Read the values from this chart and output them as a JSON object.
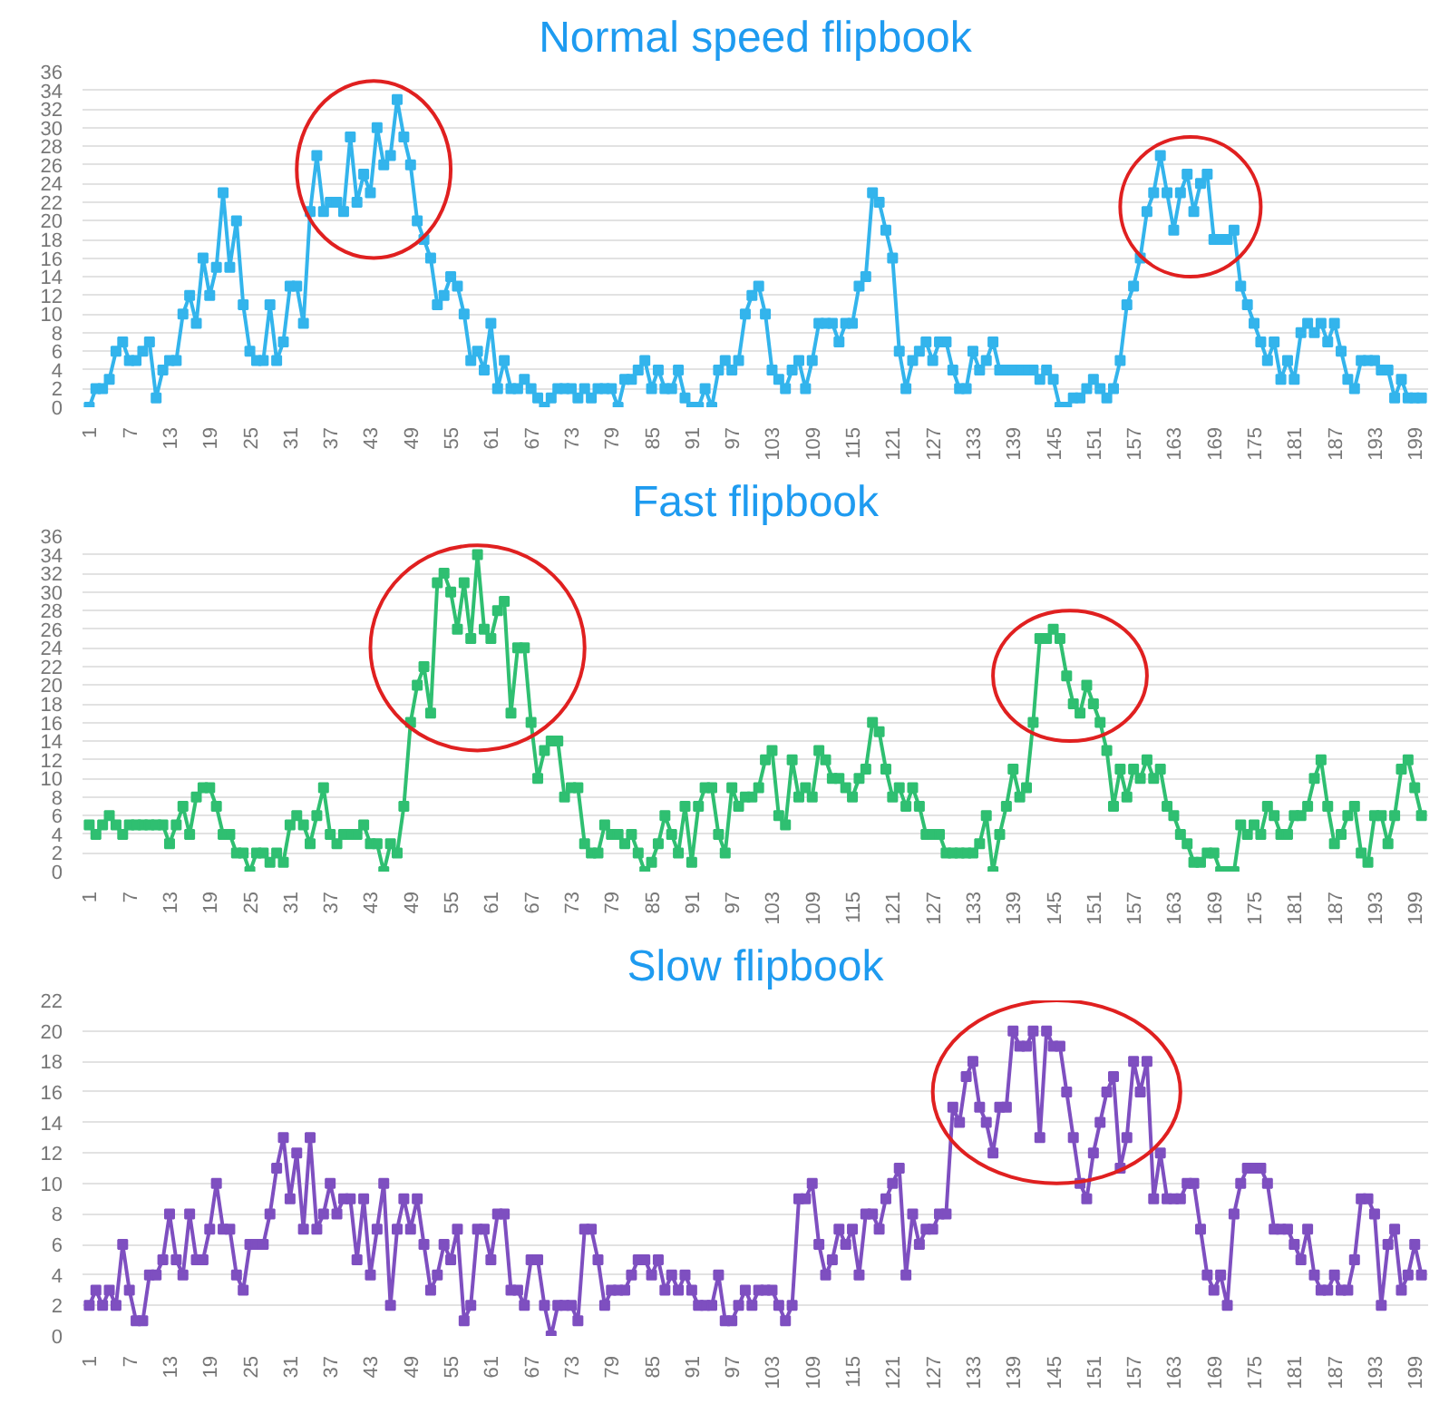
{
  "chart_data": [
    {
      "type": "line",
      "title": "Normal speed flipbook",
      "marker": "square",
      "grid": "y",
      "x": [
        1,
        2,
        3,
        4,
        5,
        6,
        7,
        8,
        9,
        10,
        11,
        12,
        13,
        14,
        15,
        16,
        17,
        18,
        19,
        20,
        21,
        22,
        23,
        24,
        25,
        26,
        27,
        28,
        29,
        30,
        31,
        32,
        33,
        34,
        35,
        36,
        37,
        38,
        39,
        40,
        41,
        42,
        43,
        44,
        45,
        46,
        47,
        48,
        49,
        50,
        51,
        52,
        53,
        54,
        55,
        56,
        57,
        58,
        59,
        60,
        61,
        62,
        63,
        64,
        65,
        66,
        67,
        68,
        69,
        70,
        71,
        72,
        73,
        74,
        75,
        76,
        77,
        78,
        79,
        80,
        81,
        82,
        83,
        84,
        85,
        86,
        87,
        88,
        89,
        90,
        91,
        92,
        93,
        94,
        95,
        96,
        97,
        98,
        99,
        100,
        101,
        102,
        103,
        104,
        105,
        106,
        107,
        108,
        109,
        110,
        111,
        112,
        113,
        114,
        115,
        116,
        117,
        118,
        119,
        120,
        121,
        122,
        123,
        124,
        125,
        126,
        127,
        128,
        129,
        130,
        131,
        132,
        133,
        134,
        135,
        136,
        137,
        138,
        139,
        140,
        141,
        142,
        143,
        144,
        145,
        146,
        147,
        148,
        149,
        150,
        151,
        152,
        153,
        154,
        155,
        156,
        157,
        158,
        159,
        160,
        161,
        162,
        163,
        164,
        165,
        166,
        167,
        168,
        169,
        170,
        171,
        172,
        173,
        174,
        175,
        176,
        177,
        178,
        179,
        180,
        181,
        182,
        183,
        184,
        185,
        186,
        187,
        188,
        189,
        190,
        191,
        192,
        193,
        194,
        195,
        196,
        197,
        198,
        199,
        200
      ],
      "series": [
        {
          "color": "#33b4ec",
          "values": [
            0,
            2,
            2,
            3,
            6,
            7,
            5,
            5,
            6,
            7,
            1,
            4,
            5,
            5,
            10,
            12,
            9,
            16,
            12,
            15,
            23,
            15,
            20,
            11,
            6,
            5,
            5,
            11,
            5,
            7,
            13,
            13,
            9,
            21,
            27,
            21,
            22,
            22,
            21,
            29,
            22,
            25,
            23,
            30,
            26,
            27,
            33,
            29,
            26,
            20,
            18,
            16,
            11,
            12,
            14,
            13,
            10,
            5,
            6,
            4,
            9,
            2,
            5,
            2,
            2,
            3,
            2,
            1,
            0,
            1,
            2,
            2,
            2,
            1,
            2,
            1,
            2,
            2,
            2,
            0,
            3,
            3,
            4,
            5,
            2,
            4,
            2,
            2,
            4,
            1,
            0,
            0,
            2,
            0,
            4,
            5,
            4,
            5,
            10,
            12,
            13,
            10,
            4,
            3,
            2,
            4,
            5,
            2,
            5,
            9,
            9,
            9,
            7,
            9,
            9,
            13,
            14,
            23,
            22,
            19,
            16,
            6,
            2,
            5,
            6,
            7,
            5,
            7,
            7,
            4,
            2,
            2,
            6,
            4,
            5,
            7,
            4,
            4,
            4,
            4,
            4,
            4,
            3,
            4,
            3,
            0,
            0,
            1,
            1,
            2,
            3,
            2,
            1,
            2,
            5,
            11,
            13,
            16,
            21,
            23,
            27,
            23,
            19,
            23,
            25,
            21,
            24,
            25,
            18,
            18,
            18,
            19,
            13,
            11,
            9,
            7,
            5,
            7,
            3,
            5,
            3,
            8,
            9,
            8,
            9,
            7,
            9,
            6,
            3,
            2,
            5,
            5,
            5,
            4,
            4,
            1,
            3,
            1,
            1,
            1
          ]
        }
      ],
      "xlim": [
        0,
        201
      ],
      "xticks": [
        1,
        7,
        13,
        19,
        25,
        31,
        37,
        43,
        49,
        55,
        61,
        67,
        73,
        79,
        85,
        91,
        97,
        103,
        109,
        115,
        121,
        127,
        133,
        139,
        145,
        151,
        157,
        163,
        169,
        175,
        181,
        187,
        193,
        199
      ],
      "ylim": [
        0,
        36
      ],
      "yticks": [
        0,
        2,
        4,
        6,
        8,
        10,
        12,
        14,
        16,
        18,
        20,
        22,
        24,
        26,
        28,
        30,
        32,
        34,
        36
      ]
    },
    {
      "type": "line",
      "title": "Fast flipbook",
      "marker": "square",
      "grid": "y",
      "x": [
        1,
        2,
        3,
        4,
        5,
        6,
        7,
        8,
        9,
        10,
        11,
        12,
        13,
        14,
        15,
        16,
        17,
        18,
        19,
        20,
        21,
        22,
        23,
        24,
        25,
        26,
        27,
        28,
        29,
        30,
        31,
        32,
        33,
        34,
        35,
        36,
        37,
        38,
        39,
        40,
        41,
        42,
        43,
        44,
        45,
        46,
        47,
        48,
        49,
        50,
        51,
        52,
        53,
        54,
        55,
        56,
        57,
        58,
        59,
        60,
        61,
        62,
        63,
        64,
        65,
        66,
        67,
        68,
        69,
        70,
        71,
        72,
        73,
        74,
        75,
        76,
        77,
        78,
        79,
        80,
        81,
        82,
        83,
        84,
        85,
        86,
        87,
        88,
        89,
        90,
        91,
        92,
        93,
        94,
        95,
        96,
        97,
        98,
        99,
        100,
        101,
        102,
        103,
        104,
        105,
        106,
        107,
        108,
        109,
        110,
        111,
        112,
        113,
        114,
        115,
        116,
        117,
        118,
        119,
        120,
        121,
        122,
        123,
        124,
        125,
        126,
        127,
        128,
        129,
        130,
        131,
        132,
        133,
        134,
        135,
        136,
        137,
        138,
        139,
        140,
        141,
        142,
        143,
        144,
        145,
        146,
        147,
        148,
        149,
        150,
        151,
        152,
        153,
        154,
        155,
        156,
        157,
        158,
        159,
        160,
        161,
        162,
        163,
        164,
        165,
        166,
        167,
        168,
        169,
        170,
        171,
        172,
        173,
        174,
        175,
        176,
        177,
        178,
        179,
        180,
        181,
        182,
        183,
        184,
        185,
        186,
        187,
        188,
        189,
        190,
        191,
        192,
        193,
        194,
        195,
        196,
        197,
        198,
        199,
        200
      ],
      "series": [
        {
          "color": "#2fbf71",
          "values": [
            5,
            4,
            5,
            6,
            5,
            4,
            5,
            5,
            5,
            5,
            5,
            5,
            3,
            5,
            7,
            4,
            8,
            9,
            9,
            7,
            4,
            4,
            2,
            2,
            0,
            2,
            2,
            1,
            2,
            1,
            5,
            6,
            5,
            3,
            6,
            9,
            4,
            3,
            4,
            4,
            4,
            5,
            3,
            3,
            0,
            3,
            2,
            7,
            16,
            20,
            22,
            17,
            31,
            32,
            30,
            26,
            31,
            25,
            34,
            26,
            25,
            28,
            29,
            17,
            24,
            24,
            16,
            10,
            13,
            14,
            14,
            8,
            9,
            9,
            3,
            2,
            2,
            5,
            4,
            4,
            3,
            4,
            2,
            0,
            1,
            3,
            6,
            4,
            2,
            7,
            1,
            7,
            9,
            9,
            4,
            2,
            9,
            7,
            8,
            8,
            9,
            12,
            13,
            6,
            5,
            12,
            8,
            9,
            8,
            13,
            12,
            10,
            10,
            9,
            8,
            10,
            11,
            16,
            15,
            11,
            8,
            9,
            7,
            9,
            7,
            4,
            4,
            4,
            2,
            2,
            2,
            2,
            2,
            3,
            6,
            0,
            4,
            7,
            11,
            8,
            9,
            16,
            25,
            25,
            26,
            25,
            21,
            18,
            17,
            20,
            18,
            16,
            13,
            7,
            11,
            8,
            11,
            10,
            12,
            10,
            11,
            7,
            6,
            4,
            3,
            1,
            1,
            2,
            2,
            0,
            0,
            0,
            5,
            4,
            5,
            4,
            7,
            6,
            4,
            4,
            6,
            6,
            7,
            10,
            12,
            7,
            3,
            4,
            6,
            7,
            2,
            1,
            6,
            6,
            3,
            6,
            11,
            12,
            9,
            6
          ]
        }
      ],
      "xlim": [
        0,
        201
      ],
      "xticks": [
        1,
        7,
        13,
        19,
        25,
        31,
        37,
        43,
        49,
        55,
        61,
        67,
        73,
        79,
        85,
        91,
        97,
        103,
        109,
        115,
        121,
        127,
        133,
        139,
        145,
        151,
        157,
        163,
        169,
        175,
        181,
        187,
        193,
        199
      ],
      "ylim": [
        0,
        36
      ],
      "yticks": [
        0,
        2,
        4,
        6,
        8,
        10,
        12,
        14,
        16,
        18,
        20,
        22,
        24,
        26,
        28,
        30,
        32,
        34,
        36
      ]
    },
    {
      "type": "line",
      "title": "Slow flipbook",
      "marker": "square",
      "grid": "y",
      "x": [
        1,
        2,
        3,
        4,
        5,
        6,
        7,
        8,
        9,
        10,
        11,
        12,
        13,
        14,
        15,
        16,
        17,
        18,
        19,
        20,
        21,
        22,
        23,
        24,
        25,
        26,
        27,
        28,
        29,
        30,
        31,
        32,
        33,
        34,
        35,
        36,
        37,
        38,
        39,
        40,
        41,
        42,
        43,
        44,
        45,
        46,
        47,
        48,
        49,
        50,
        51,
        52,
        53,
        54,
        55,
        56,
        57,
        58,
        59,
        60,
        61,
        62,
        63,
        64,
        65,
        66,
        67,
        68,
        69,
        70,
        71,
        72,
        73,
        74,
        75,
        76,
        77,
        78,
        79,
        80,
        81,
        82,
        83,
        84,
        85,
        86,
        87,
        88,
        89,
        90,
        91,
        92,
        93,
        94,
        95,
        96,
        97,
        98,
        99,
        100,
        101,
        102,
        103,
        104,
        105,
        106,
        107,
        108,
        109,
        110,
        111,
        112,
        113,
        114,
        115,
        116,
        117,
        118,
        119,
        120,
        121,
        122,
        123,
        124,
        125,
        126,
        127,
        128,
        129,
        130,
        131,
        132,
        133,
        134,
        135,
        136,
        137,
        138,
        139,
        140,
        141,
        142,
        143,
        144,
        145,
        146,
        147,
        148,
        149,
        150,
        151,
        152,
        153,
        154,
        155,
        156,
        157,
        158,
        159,
        160,
        161,
        162,
        163,
        164,
        165,
        166,
        167,
        168,
        169,
        170,
        171,
        172,
        173,
        174,
        175,
        176,
        177,
        178,
        179,
        180,
        181,
        182,
        183,
        184,
        185,
        186,
        187,
        188,
        189,
        190,
        191,
        192,
        193,
        194,
        195,
        196,
        197,
        198,
        199,
        200
      ],
      "series": [
        {
          "color": "#7e4fc0",
          "values": [
            2,
            3,
            2,
            3,
            2,
            6,
            3,
            1,
            1,
            4,
            4,
            5,
            8,
            5,
            4,
            8,
            5,
            5,
            7,
            10,
            7,
            7,
            4,
            3,
            6,
            6,
            6,
            8,
            11,
            13,
            9,
            12,
            7,
            13,
            7,
            8,
            10,
            8,
            9,
            9,
            5,
            9,
            4,
            7,
            10,
            2,
            7,
            9,
            7,
            9,
            6,
            3,
            4,
            6,
            5,
            7,
            1,
            2,
            7,
            7,
            5,
            8,
            8,
            3,
            3,
            2,
            5,
            5,
            2,
            0,
            2,
            2,
            2,
            1,
            7,
            7,
            5,
            2,
            3,
            3,
            3,
            4,
            5,
            5,
            4,
            5,
            3,
            4,
            3,
            4,
            3,
            2,
            2,
            2,
            4,
            1,
            1,
            2,
            3,
            2,
            3,
            3,
            3,
            2,
            1,
            2,
            9,
            9,
            10,
            6,
            4,
            5,
            7,
            6,
            7,
            4,
            8,
            8,
            7,
            9,
            10,
            11,
            4,
            8,
            6,
            7,
            7,
            8,
            8,
            15,
            14,
            17,
            18,
            15,
            14,
            12,
            15,
            15,
            20,
            19,
            19,
            20,
            13,
            20,
            19,
            19,
            16,
            13,
            10,
            9,
            12,
            14,
            16,
            17,
            11,
            13,
            18,
            16,
            18,
            9,
            12,
            9,
            9,
            9,
            10,
            10,
            7,
            4,
            3,
            4,
            2,
            8,
            10,
            11,
            11,
            11,
            10,
            7,
            7,
            7,
            6,
            5,
            7,
            4,
            3,
            3,
            4,
            3,
            3,
            5,
            9,
            9,
            8,
            2,
            6,
            7,
            3,
            4,
            6,
            4
          ]
        }
      ],
      "xlim": [
        0,
        201
      ],
      "xticks": [
        1,
        7,
        13,
        19,
        25,
        31,
        37,
        43,
        49,
        55,
        61,
        67,
        73,
        79,
        85,
        91,
        97,
        103,
        109,
        115,
        121,
        127,
        133,
        139,
        145,
        151,
        157,
        163,
        169,
        175,
        181,
        187,
        193,
        199
      ],
      "ylim": [
        0,
        22
      ],
      "yticks": [
        0,
        2,
        4,
        6,
        8,
        10,
        12,
        14,
        16,
        18,
        20,
        22
      ]
    }
  ]
}
